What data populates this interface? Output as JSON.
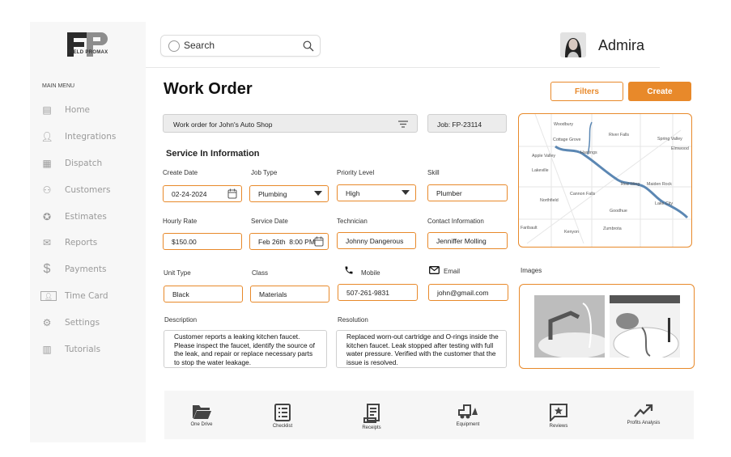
{
  "brand": {
    "logo_letters": "FP",
    "logo_text": "FIELD PROMAX"
  },
  "sidebar": {
    "heading": "MAIN MENU",
    "items": [
      {
        "label": "Home",
        "icon": "home-icon"
      },
      {
        "label": "Integrations",
        "icon": "person-icon"
      },
      {
        "label": "Dispatch",
        "icon": "calendar-grid-icon"
      },
      {
        "label": "Customers",
        "icon": "group-icon"
      },
      {
        "label": "Estimates",
        "icon": "star-circle-icon"
      },
      {
        "label": "Reports",
        "icon": "inbox-icon"
      },
      {
        "label": "Payments",
        "icon": "dollar-icon"
      },
      {
        "label": "Time Card",
        "icon": "id-card-icon"
      },
      {
        "label": "Settings",
        "icon": "gear-icon"
      },
      {
        "label": "Tutorials",
        "icon": "books-icon"
      }
    ]
  },
  "header": {
    "search_placeholder": "Search",
    "user_name": "Admira"
  },
  "page": {
    "title": "Work Order",
    "filters_label": "Filters",
    "create_label": "Create",
    "work_order_name": "Work order for John's Auto Shop",
    "job_id": "Job: FP-23114",
    "section_title": "Service In Information"
  },
  "form": {
    "create_date": {
      "label": "Create Date",
      "value": "02-24-2024"
    },
    "job_type": {
      "label": "Job Type",
      "value": "Plumbing"
    },
    "priority": {
      "label": "Priority Level",
      "value": "High"
    },
    "skill": {
      "label": "Skill",
      "value": "Plumber"
    },
    "hourly_rate": {
      "label": "Hourly Rate",
      "value": "$150.00"
    },
    "service_date": {
      "label": "Service Date",
      "value": "Feb 26th  8:00 PM"
    },
    "technician": {
      "label": "Technician",
      "value": "Johnny Dangerous"
    },
    "contact": {
      "label": "Contact Information",
      "value": "Jenniffer Molling"
    },
    "unit_type": {
      "label": "Unit Type",
      "value": "Black"
    },
    "class": {
      "label": "Class",
      "value": "Materials"
    },
    "mobile": {
      "label": "Mobile",
      "value": "507-261-9831"
    },
    "email": {
      "label": "Email",
      "value": "john@gmail.com"
    },
    "description": {
      "label": "Description",
      "value": "Customer reports a leaking kitchen faucet. Please inspect the faucet, identify the source of the leak, and repair or replace necessary parts to stop the water leakage."
    },
    "resolution": {
      "label": "Resolution",
      "value": "Replaced worn-out cartridge and O-rings inside the kitchen faucet. Leak stopped after testing with full water pressure. Verified with the customer that the issue is resolved."
    }
  },
  "map": {
    "labels": [
      "Woodbury",
      "Cottage Grove",
      "River Falls",
      "Spring Valley",
      "Elmwood",
      "Hastings",
      "Apple Valley",
      "Lakeville",
      "Red Wing",
      "Maiden Rock",
      "Cannon Falls",
      "Northfield",
      "Goodhue",
      "Lake City",
      "Zumbrota",
      "Kenyon",
      "Faribault"
    ]
  },
  "images": {
    "label": "Images"
  },
  "toolbar": [
    {
      "label": "One Drive",
      "icon": "folder-icon"
    },
    {
      "label": "Checklist",
      "icon": "checklist-icon"
    },
    {
      "label": "Receipts",
      "icon": "receipt-icon"
    },
    {
      "label": "Equipment",
      "icon": "forklift-icon"
    },
    {
      "label": "Reviews",
      "icon": "review-star-icon"
    },
    {
      "label": "Profits Analysis",
      "icon": "trending-up-icon"
    }
  ],
  "colors": {
    "accent": "#e8892a",
    "sidebar_bg": "#f7f7f7",
    "muted_text": "#9a9a9a"
  }
}
